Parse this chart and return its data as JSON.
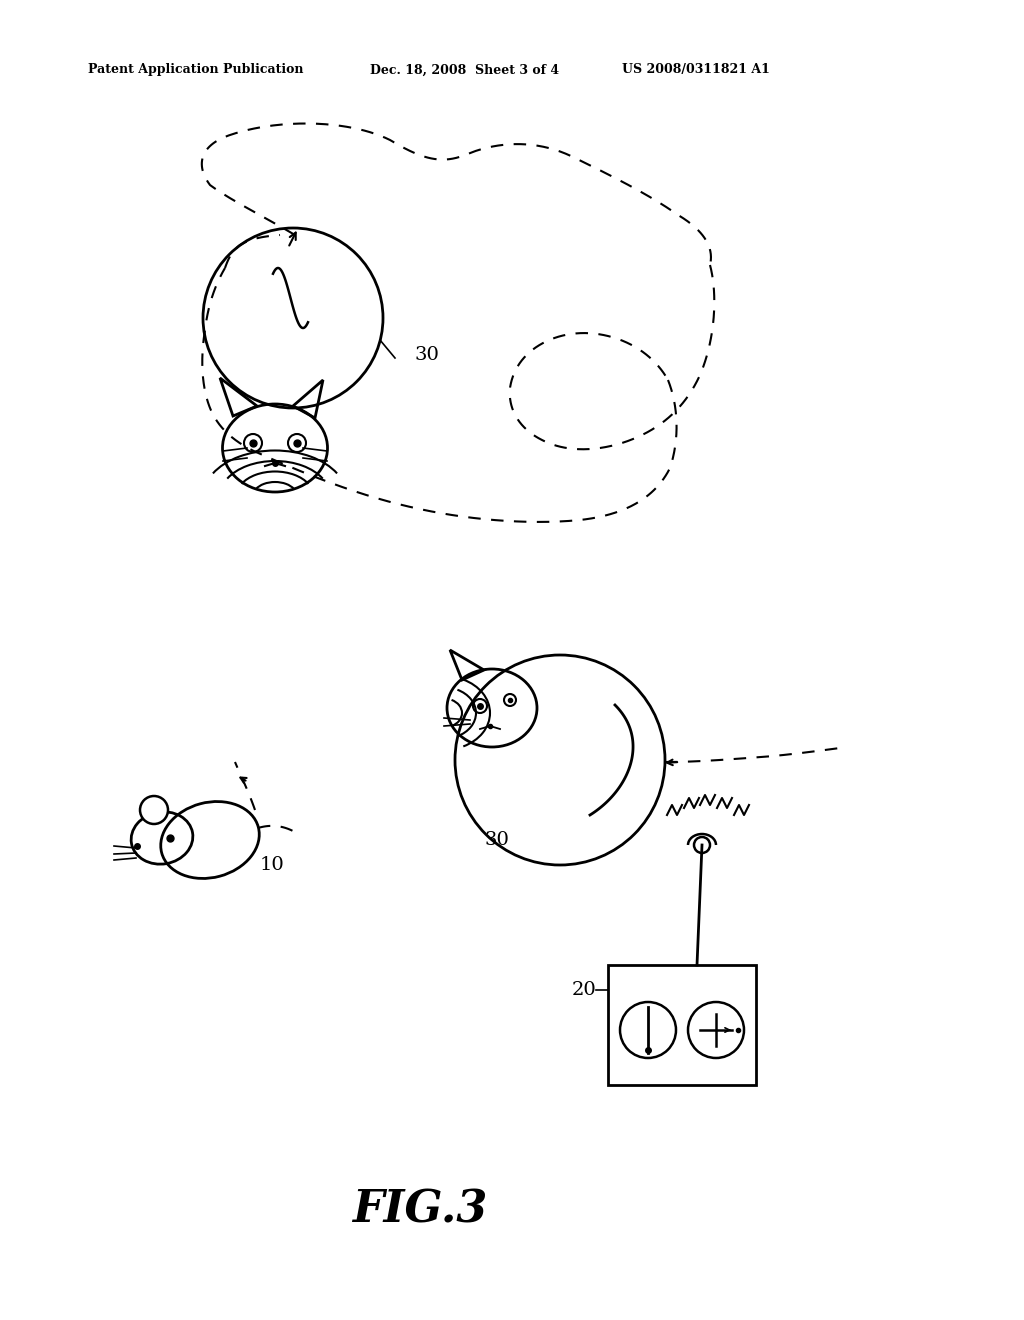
{
  "title_left": "Patent Application Publication",
  "title_mid": "Dec. 18, 2008  Sheet 3 of 4",
  "title_right": "US 2008/0311821 A1",
  "fig_label": "FIG.3",
  "label_10": "10",
  "label_20": "20",
  "label_30a": "30",
  "label_30b": "30",
  "bg_color": "#ffffff",
  "line_color": "#000000"
}
